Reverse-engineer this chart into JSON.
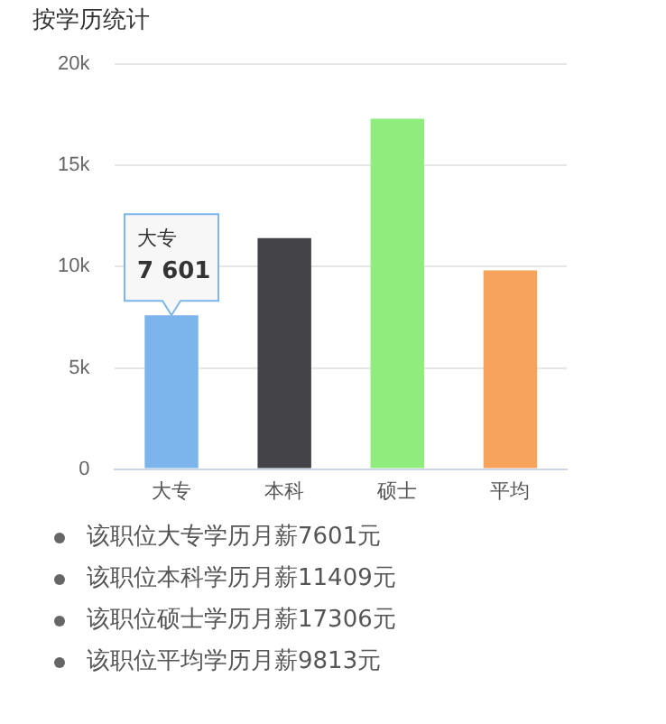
{
  "chart_data": {
    "type": "bar",
    "title": "按学历统计",
    "categories": [
      "大专",
      "本科",
      "硕士",
      "平均"
    ],
    "values": [
      7601,
      11409,
      17306,
      9813
    ],
    "colors": [
      "#7cb5ec",
      "#434348",
      "#90ed7d",
      "#f7a35c"
    ],
    "ylim": [
      0,
      20000
    ],
    "yticks": [
      0,
      {
        "value": 5000,
        "label": "5k"
      },
      {
        "value": 10000,
        "label": "10k"
      },
      {
        "value": 15000,
        "label": "15k"
      },
      {
        "value": 20000,
        "label": "20k"
      }
    ],
    "grid": "y",
    "legend": false,
    "annotations": [
      {
        "text": "大专\n7 601",
        "x": "大专",
        "y": 7601
      },
      "该职位大专学历月薪7601元",
      "该职位本科学历月薪11409元",
      "该职位硕士学历月薪17306元",
      "该职位平均学历月薪9813元"
    ]
  }
}
